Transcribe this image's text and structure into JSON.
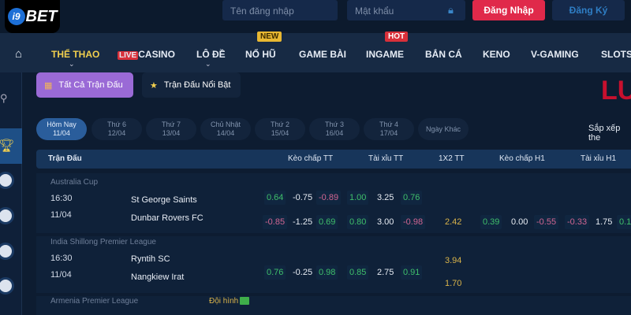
{
  "header": {
    "logo": "i9BET",
    "username_placeholder": "Tên đăng nhập",
    "password_placeholder": "Mật khẩu",
    "login": "Đăng Nhập",
    "register": "Đăng Ký"
  },
  "nav": {
    "items": [
      "THỂ THAO",
      "CASINO",
      "LÔ ĐỀ",
      "NỔ HŨ",
      "GAME BÀI",
      "INGAME",
      "BẮN CÁ",
      "KENO",
      "V-GAMING",
      "SLOTS"
    ],
    "live": "LIVE",
    "new": "NEW",
    "hot": "HOT"
  },
  "chips": {
    "all": "Tất Cả Trận Đấu",
    "featured": "Trận Đấu Nổi Bật"
  },
  "dates": [
    {
      "d": "Hôm Nay",
      "n": "11/04"
    },
    {
      "d": "Thứ 6",
      "n": "12/04"
    },
    {
      "d": "Thứ 7",
      "n": "13/04"
    },
    {
      "d": "Chủ Nhật",
      "n": "14/04"
    },
    {
      "d": "Thứ 2",
      "n": "15/04"
    },
    {
      "d": "Thứ 3",
      "n": "16/04"
    },
    {
      "d": "Thứ 4",
      "n": "17/04"
    },
    {
      "d": "Ngày Khác",
      "n": ""
    }
  ],
  "sort_label": "Sắp xếp the",
  "banner_text": "LU",
  "table": {
    "headers": [
      "Trận Đấu",
      "Kèo chấp TT",
      "Tài xỉu TT",
      "1X2 TT",
      "Kèo chấp H1",
      "Tài xỉu H1"
    ]
  },
  "matches": [
    {
      "league": "Australia Cup",
      "time": "16:30",
      "date": "11/04",
      "home": "St George Saints",
      "away": "Dunbar Rovers FC",
      "r1": [
        "0.64",
        "-0.75",
        "-0.89",
        "1.00",
        "3.25",
        "0.76"
      ],
      "r2": [
        "-0.85",
        "-1.25",
        "0.69",
        "0.80",
        "3.00",
        "-0.98",
        "2.42",
        "0.39",
        "0.00",
        "-0.55",
        "-0.33",
        "1.75",
        "0.1"
      ]
    },
    {
      "league": "India Shillong Premier League",
      "time": "16:30",
      "date": "11/04",
      "home": "Ryntih SC",
      "away": "Nangkiew Irat",
      "x1": "3.94",
      "x2": "1.70",
      "r": [
        "0.76",
        "-0.25",
        "0.98",
        "0.85",
        "2.75",
        "0.91"
      ]
    },
    {
      "league": "Armenia Premier League",
      "lineup": "Đội hình"
    }
  ],
  "colors": {
    "login": "#e0294a",
    "green": "#3fbf6a",
    "red": "#d06591",
    "yellow": "#d9b34a",
    "accent": "#f1cf4e"
  }
}
